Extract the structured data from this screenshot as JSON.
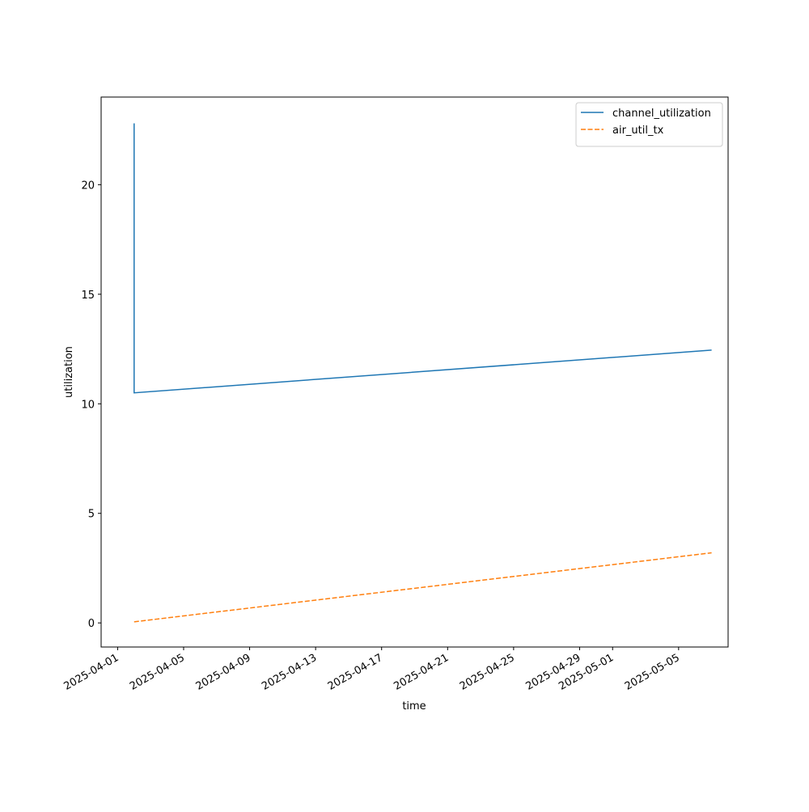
{
  "chart_data": {
    "type": "line",
    "x_label": "time",
    "y_label": "utilization",
    "x": [
      "2025-04-02",
      "2025-04-02",
      "2025-05-07"
    ],
    "series": [
      {
        "name": "channel_utilization",
        "color": "#1f77b4",
        "linestyle": "solid",
        "values": [
          22.8,
          10.5,
          12.45
        ]
      },
      {
        "name": "air_util_tx",
        "color": "#ff7f0e",
        "linestyle": "dashed",
        "values": [
          0.05,
          0.05,
          3.2
        ]
      }
    ],
    "xlim": [
      "2025-03-31",
      "2025-05-08"
    ],
    "xticks": [
      "2025-04-01",
      "2025-04-05",
      "2025-04-09",
      "2025-04-13",
      "2025-04-17",
      "2025-04-21",
      "2025-04-25",
      "2025-04-29",
      "2025-05-01",
      "2025-05-05"
    ],
    "ylim": [
      -1.1,
      24
    ],
    "yticks": [
      0,
      5,
      10,
      15,
      20
    ],
    "legend": "upper right"
  }
}
